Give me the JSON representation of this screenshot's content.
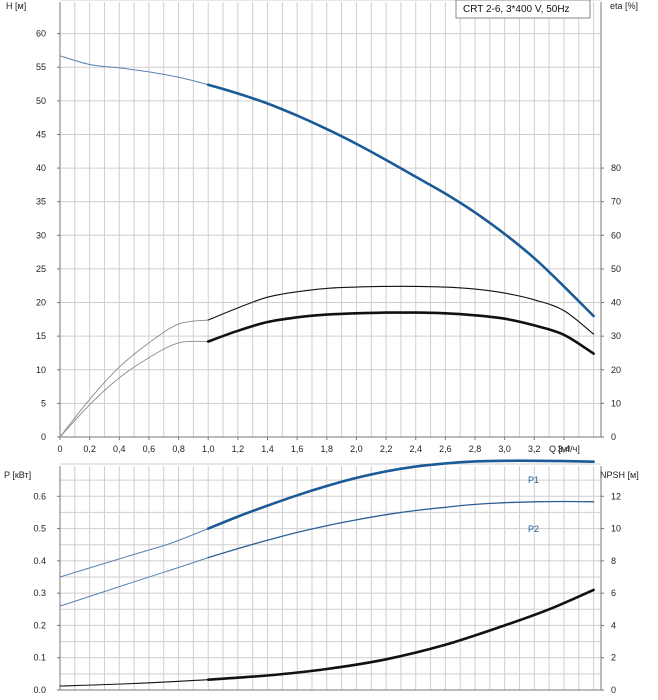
{
  "legend": {
    "text": "CRT 2-6, 3*400 V, 50Hz"
  },
  "chart_data": [
    {
      "type": "line",
      "title": "",
      "xlabel": "Q [м³/ч]",
      "ylabel": "H [м]",
      "y2label": "eta [%]",
      "xlim": [
        0,
        3.65
      ],
      "ylim": [
        0,
        65
      ],
      "y2lim": [
        0,
        130
      ],
      "x_ticks": [
        "0",
        "0,2",
        "0,4",
        "0,6",
        "0,8",
        "1,0",
        "1,2",
        "1,4",
        "1,6",
        "1,8",
        "2,0",
        "2,2",
        "2,4",
        "2,6",
        "2,8",
        "3,0",
        "3,2",
        "3,4"
      ],
      "y_ticks": [
        "0",
        "5",
        "10",
        "15",
        "20",
        "25",
        "30",
        "35",
        "40",
        "45",
        "50",
        "55",
        "60"
      ],
      "y2_ticks": [
        "0",
        "10",
        "20",
        "30",
        "40",
        "50",
        "60",
        "70",
        "80"
      ],
      "grid": true,
      "series": [
        {
          "key": "h_ext",
          "axis": "left",
          "style": "thin-blue",
          "x": [
            0,
            0.2,
            0.4,
            0.6,
            0.8,
            1.0
          ],
          "y": [
            56.7,
            55.4,
            54.9,
            54.3,
            53.5,
            52.4
          ]
        },
        {
          "key": "h_op",
          "axis": "left",
          "style": "thick-blue",
          "x": [
            1.0,
            1.2,
            1.4,
            1.6,
            1.8,
            2.0,
            2.2,
            2.4,
            2.6,
            2.8,
            3.0,
            3.2,
            3.4,
            3.6
          ],
          "y": [
            52.4,
            51.1,
            49.6,
            47.8,
            45.8,
            43.6,
            41.2,
            38.7,
            36.2,
            33.4,
            30.2,
            26.6,
            22.4,
            18.0
          ]
        },
        {
          "key": "eta_upper_ext",
          "axis": "right",
          "style": "thin-gray",
          "x": [
            0,
            0.2,
            0.4,
            0.6,
            0.8,
            1.0
          ],
          "y": [
            0,
            11.2,
            20.8,
            28,
            33.6,
            34.8
          ]
        },
        {
          "key": "eta_upper_op",
          "axis": "right",
          "style": "thin-black",
          "x": [
            1.0,
            1.2,
            1.4,
            1.6,
            1.8,
            2.0,
            2.2,
            2.4,
            2.6,
            2.8,
            3.0,
            3.2,
            3.4,
            3.6
          ],
          "y": [
            34.8,
            38.4,
            41.6,
            43.2,
            44.2,
            44.6,
            44.8,
            44.8,
            44.6,
            44.0,
            42.8,
            40.8,
            37.6,
            30.6
          ]
        },
        {
          "key": "eta_lower_ext",
          "axis": "right",
          "style": "thin-gray",
          "x": [
            0,
            0.2,
            0.4,
            0.6,
            0.8,
            1.0
          ],
          "y": [
            0,
            9.6,
            17.6,
            23.6,
            28.0,
            28.4
          ]
        },
        {
          "key": "eta_lower_op",
          "axis": "right",
          "style": "thick-black",
          "x": [
            1.0,
            1.2,
            1.4,
            1.6,
            1.8,
            2.0,
            2.2,
            2.4,
            2.6,
            2.8,
            3.0,
            3.2,
            3.4,
            3.6
          ],
          "y": [
            28.4,
            31.6,
            34.2,
            35.6,
            36.4,
            36.8,
            37.0,
            37.0,
            36.8,
            36.2,
            35.2,
            33.2,
            30.4,
            24.8
          ]
        }
      ]
    },
    {
      "type": "line",
      "title": "",
      "xlabel": "",
      "ylabel": "P [кВт]",
      "y2label": "NPSH [м]",
      "xlim": [
        0,
        3.65
      ],
      "ylim": [
        0,
        0.7
      ],
      "y2lim": [
        0,
        14
      ],
      "y_ticks": [
        "0.0",
        "0.1",
        "0.2",
        "0.3",
        "0.4",
        "0.5",
        "0.6"
      ],
      "y2_ticks": [
        "0",
        "2",
        "4",
        "6",
        "8",
        "10",
        "12"
      ],
      "grid": true,
      "series": [
        {
          "key": "p1_ext",
          "axis": "left",
          "style": "thin-blue",
          "x": [
            0,
            0.5,
            0.75,
            1.0
          ],
          "y": [
            0.35,
            0.42,
            0.455,
            0.5
          ]
        },
        {
          "key": "p1",
          "name": "P1",
          "axis": "left",
          "style": "thick-blue",
          "x": [
            1.0,
            1.2,
            1.4,
            1.6,
            1.8,
            2.0,
            2.2,
            2.4,
            2.6,
            2.8,
            3.0,
            3.2,
            3.4,
            3.6
          ],
          "y": [
            0.5,
            0.537,
            0.571,
            0.603,
            0.632,
            0.657,
            0.677,
            0.692,
            0.702,
            0.708,
            0.71,
            0.71,
            0.709,
            0.707
          ]
        },
        {
          "key": "p2_ext",
          "axis": "left",
          "style": "thin-blue",
          "x": [
            0,
            0.5,
            0.75,
            1.0
          ],
          "y": [
            0.26,
            0.335,
            0.372,
            0.41
          ]
        },
        {
          "key": "p2",
          "name": "P2",
          "axis": "left",
          "style": "medium-blue",
          "x": [
            1.0,
            1.2,
            1.4,
            1.6,
            1.8,
            2.0,
            2.2,
            2.4,
            2.6,
            2.8,
            3.0,
            3.2,
            3.4,
            3.6
          ],
          "y": [
            0.41,
            0.438,
            0.464,
            0.488,
            0.509,
            0.527,
            0.543,
            0.556,
            0.566,
            0.575,
            0.58,
            0.583,
            0.584,
            0.583
          ]
        },
        {
          "key": "npsh_ext",
          "axis": "right",
          "style": "thin-black",
          "x": [
            0,
            0.5,
            1.0
          ],
          "y": [
            0.25,
            0.4,
            0.64
          ]
        },
        {
          "key": "npsh",
          "axis": "right",
          "style": "thick-black",
          "x": [
            1.0,
            1.4,
            1.8,
            2.2,
            2.6,
            3.0,
            3.3,
            3.6
          ],
          "y": [
            0.64,
            0.9,
            1.3,
            1.9,
            2.8,
            4.0,
            5.0,
            6.2
          ]
        }
      ]
    }
  ]
}
